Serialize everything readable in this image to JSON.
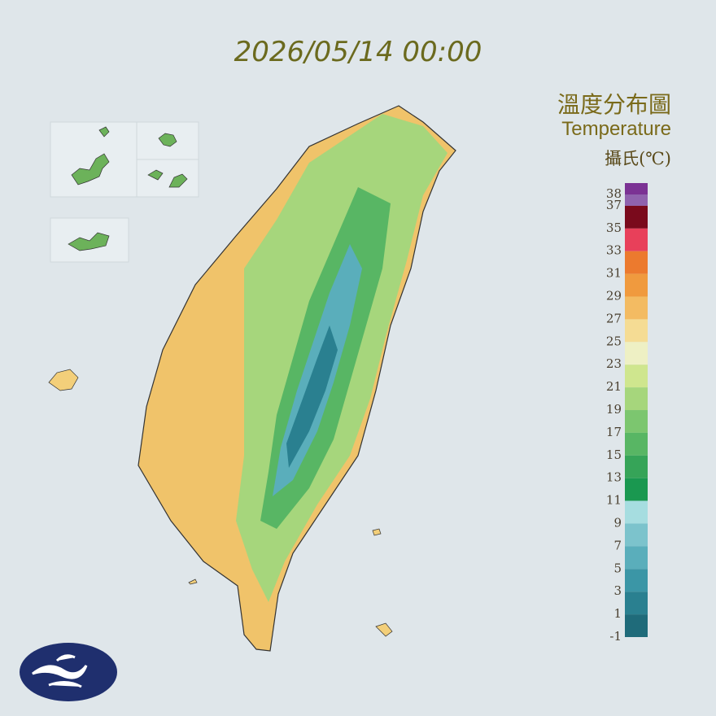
{
  "timestamp": "2026/05/14 00:00",
  "legend": {
    "title": "溫度分布圖",
    "subtitle": "Temperature",
    "unit": "攝氏(℃)",
    "ticks": [
      38,
      37,
      35,
      33,
      31,
      29,
      27,
      25,
      23,
      21,
      19,
      17,
      15,
      13,
      11,
      9,
      7,
      5,
      3,
      1,
      -1
    ],
    "colors": [
      "#7b3294",
      "#9062ae",
      "#7a0a1c",
      "#e8405a",
      "#ec7a2e",
      "#f09a3e",
      "#f3bb62",
      "#f5dc94",
      "#eef0c4",
      "#cfe68e",
      "#a6d67c",
      "#7cc66f",
      "#58b664",
      "#36a458",
      "#1a9850",
      "#a6dde0",
      "#7cc3cc",
      "#5aaebb",
      "#3b96a6",
      "#2a8090",
      "#1f6b7a"
    ]
  }
}
